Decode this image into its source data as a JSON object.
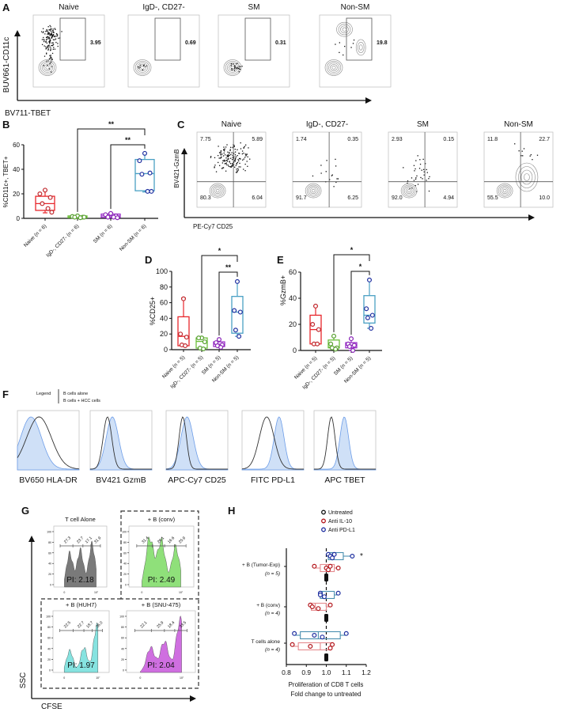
{
  "panel_labels": {
    "A": "A",
    "B": "B",
    "C": "C",
    "D": "D",
    "E": "E",
    "F": "F",
    "G": "G",
    "H": "H"
  },
  "A": {
    "titles": [
      "Naive",
      "IgD-, CD27-",
      "SM",
      "Non-SM"
    ],
    "gate_values": [
      "3.95",
      "0.69",
      "0.31",
      "19.8"
    ],
    "ylabel": "BUV661-CD11c",
    "xlabel": "BV711-TBET"
  },
  "C": {
    "titles": [
      "Naive",
      "IgD-, CD27-",
      "SM",
      "Non-SM"
    ],
    "quadrants": [
      [
        "7.75",
        "5.89",
        "80.3",
        "6.04"
      ],
      [
        "1.74",
        "0.35",
        "91.7",
        "6.25"
      ],
      [
        "2.93",
        "0.15",
        "92.0",
        "4.94"
      ],
      [
        "11.8",
        "22.7",
        "55.5",
        "10.0"
      ]
    ],
    "ylabel": "BV421-GzmB",
    "xlabel": "PE-Cy7 CD25"
  },
  "F": {
    "legend_title": "Legend",
    "legend_items": [
      "B cells alone",
      "B cells + HCC cells"
    ],
    "markers": [
      "BV650 HLA-DR",
      "BV421 GzmB",
      "APC-Cy7 CD25",
      "FITC PD-L1",
      "APC TBET"
    ],
    "colors": {
      "alone": "#333333",
      "hcc": "#6d9de8"
    }
  },
  "G": {
    "panels": [
      {
        "title": "T cell Alone",
        "gates": [
          "27.3",
          "23.7",
          "17.1",
          "31.9"
        ],
        "pi": "PI: 2.18",
        "color": "#7a7a7a"
      },
      {
        "title": "+ B (conv)",
        "gates": [
          "31.4",
          "26.1",
          "16.6",
          "25.9"
        ],
        "pi": "PI: 2.49",
        "color": "#8fe07a"
      },
      {
        "title": "+ B (HUH7)",
        "gates": [
          "22.5",
          "22.7",
          "18.7",
          "36.0"
        ],
        "pi": "PI: 1.97",
        "color": "#86e3e0"
      },
      {
        "title": "+ B (SNU-475)",
        "gates": [
          "22.1",
          "25.9",
          "18.4",
          "33.5"
        ],
        "pi": "PI: 2.04",
        "color": "#cf6fe0"
      }
    ],
    "yticks": [
      "0",
      "20",
      "40",
      "60",
      "80",
      "100"
    ],
    "xticks": [
      "0",
      "10⁷"
    ],
    "ylabel": "SSC",
    "xlabel": "CFSE"
  },
  "chart_data": [
    {
      "panel": "B",
      "type": "box",
      "orientation": "vertical",
      "ylabel": "%CD11c+, TBET+",
      "ylim": [
        0,
        60
      ],
      "yticks": [
        "0",
        "20",
        "40",
        "60"
      ],
      "categories": [
        "Naive (n = 6)",
        "IgD-, CD27- (n = 6)",
        "SM (n = 6)",
        "Non-SM (n = 6)"
      ],
      "series": [
        {
          "name": "Naive",
          "color": "#e8262b",
          "point_color": "#c0282d",
          "points": [
            23,
            20,
            17,
            12,
            8,
            5
          ],
          "box": {
            "min": 4.5,
            "q1": 6.5,
            "median": 12,
            "q3": 18,
            "max": 23
          }
        },
        {
          "name": "IgD-, CD27-",
          "color": "#6cbf3b",
          "point_color": "#58a030",
          "points": [
            2,
            1.5,
            1,
            1,
            0.5,
            1
          ],
          "box": {
            "min": 0,
            "q1": 0.5,
            "median": 1,
            "q3": 2,
            "max": 2
          }
        },
        {
          "name": "SM",
          "color": "#9b2fc9",
          "point_color": "#8a25b8",
          "points": [
            4,
            3,
            2,
            1,
            1,
            0.5
          ],
          "box": {
            "min": 0.5,
            "q1": 0.7,
            "median": 2,
            "q3": 3.5,
            "max": 4.5
          }
        },
        {
          "name": "Non-SM",
          "color": "#4aa0c4",
          "point_color": "#1f2fa0",
          "points": [
            53,
            47,
            37,
            36,
            22,
            22
          ],
          "box": {
            "min": 21.5,
            "q1": 22.5,
            "median": 36.5,
            "q3": 48,
            "max": 53
          }
        }
      ],
      "significance": [
        {
          "from": 1,
          "to": 3,
          "label": "**"
        },
        {
          "from": 2,
          "to": 3,
          "label": "**"
        }
      ]
    },
    {
      "panel": "D",
      "type": "box",
      "orientation": "vertical",
      "ylabel": "%CD25+",
      "ylim": [
        0,
        100
      ],
      "yticks": [
        "0",
        "20",
        "40",
        "60",
        "80",
        "100"
      ],
      "categories": [
        "Naive (n = 5)",
        "IgD-, CD27- (n = 5)",
        "SM (n = 5)",
        "Non-SM (n = 5)"
      ],
      "series": [
        {
          "name": "Naive",
          "color": "#e8262b",
          "point_color": "#c0282d",
          "points": [
            65,
            20,
            16,
            6,
            5
          ],
          "box": {
            "min": 4,
            "q1": 5,
            "median": 17,
            "q3": 42,
            "max": 66
          }
        },
        {
          "name": "IgD-, CD27-",
          "color": "#6cbf3b",
          "point_color": "#58a030",
          "points": [
            15,
            15,
            10,
            2,
            1
          ],
          "box": {
            "min": 1,
            "q1": 2,
            "median": 10.5,
            "q3": 15,
            "max": 16
          }
        },
        {
          "name": "SM",
          "color": "#9b2fc9",
          "point_color": "#8a25b8",
          "points": [
            13,
            9,
            6,
            5,
            3
          ],
          "box": {
            "min": 3,
            "q1": 4,
            "median": 7,
            "q3": 10,
            "max": 13
          }
        },
        {
          "name": "Non-SM",
          "color": "#4aa0c4",
          "point_color": "#1f2fa0",
          "points": [
            87,
            50,
            48,
            25,
            17
          ],
          "box": {
            "min": 17,
            "q1": 21,
            "median": 48,
            "q3": 68,
            "max": 87
          }
        }
      ],
      "significance": [
        {
          "from": 1,
          "to": 3,
          "label": "*"
        },
        {
          "from": 2,
          "to": 3,
          "label": "**"
        }
      ]
    },
    {
      "panel": "E",
      "type": "box",
      "orientation": "vertical",
      "ylabel": "%GzmB+",
      "ylim": [
        0,
        60
      ],
      "yticks": [
        "0",
        "20",
        "40",
        "60"
      ],
      "categories": [
        "Naive (n = 5)",
        "IgD-, CD27- (n = 5)",
        "SM (n = 5)",
        "Non-SM (n = 5)"
      ],
      "series": [
        {
          "name": "Naive",
          "color": "#e8262b",
          "point_color": "#c0282d",
          "points": [
            34,
            20,
            16,
            5,
            5
          ],
          "box": {
            "min": 4.5,
            "q1": 5,
            "median": 16,
            "q3": 27,
            "max": 34
          }
        },
        {
          "name": "IgD-, CD27-",
          "color": "#6cbf3b",
          "point_color": "#58a030",
          "points": [
            11,
            5,
            2,
            2,
            1
          ],
          "box": {
            "min": 1,
            "q1": 2,
            "median": 2.5,
            "q3": 8,
            "max": 11
          }
        },
        {
          "name": "SM",
          "color": "#9b2fc9",
          "point_color": "#8a25b8",
          "points": [
            9,
            5,
            4,
            3,
            0
          ],
          "box": {
            "min": 0,
            "q1": 2,
            "median": 4,
            "q3": 6,
            "max": 9
          }
        },
        {
          "name": "Non-SM",
          "color": "#4aa0c4",
          "point_color": "#1f2fa0",
          "points": [
            54,
            32,
            27,
            25,
            17
          ],
          "box": {
            "min": 17,
            "q1": 21,
            "median": 27,
            "q3": 42,
            "max": 54
          }
        }
      ],
      "significance": [
        {
          "from": 1,
          "to": 3,
          "label": "*"
        },
        {
          "from": 2,
          "to": 3,
          "label": "*"
        }
      ]
    },
    {
      "panel": "H",
      "type": "box",
      "orientation": "horizontal",
      "xlabel": [
        "Proliferation of CD8 T cells",
        "Fold change to untreated"
      ],
      "xlim": [
        0.8,
        1.2
      ],
      "xticks": [
        "0.8",
        "0.9",
        "1.0",
        "1.1",
        "1.2"
      ],
      "reference_line": 1.0,
      "legend": [
        {
          "name": "Untreated",
          "color": "#111111"
        },
        {
          "name": "Anti IL-10",
          "color": "#b3161c"
        },
        {
          "name": "Anti PD-L1",
          "color": "#1f2fa0"
        }
      ],
      "groups": [
        {
          "label": "+ B (Tumor-Exp)",
          "n": "(n = 5)",
          "annotation": "*",
          "series": [
            {
              "name": "Untreated",
              "points": [
                1,
                1,
                1,
                1,
                1
              ],
              "box": {
                "min": 1,
                "q1": 1,
                "median": 1,
                "q3": 1,
                "max": 1
              }
            },
            {
              "name": "Anti IL-10",
              "box_color": "#e58a8e",
              "points": [
                0.94,
                1.0,
                1.01,
                1.02,
                1.06
              ],
              "box": {
                "min": 0.94,
                "q1": 0.97,
                "median": 1.0,
                "q3": 1.04,
                "max": 1.06
              }
            },
            {
              "name": "Anti PD-L1",
              "box_color": "#4a8fb0",
              "points": [
                1.01,
                1.02,
                1.03,
                1.04,
                1.13
              ],
              "box": {
                "min": 1.01,
                "q1": 1.01,
                "median": 1.03,
                "q3": 1.085,
                "max": 1.13
              }
            }
          ]
        },
        {
          "label": "+ B (conv)",
          "n": "(n = 4)",
          "annotation": "",
          "series": [
            {
              "name": "Untreated",
              "points": [
                1,
                1,
                1,
                1
              ],
              "box": {
                "min": 1,
                "q1": 1,
                "median": 1,
                "q3": 1,
                "max": 1
              }
            },
            {
              "name": "Anti IL-10",
              "box_color": "#e58a8e",
              "points": [
                0.92,
                0.93,
                0.96,
                1.02
              ],
              "box": {
                "min": 0.92,
                "q1": 0.925,
                "median": 0.945,
                "q3": 1.0,
                "max": 1.02
              }
            },
            {
              "name": "Anti PD-L1",
              "box_color": "#4a8fb0",
              "points": [
                0.97,
                0.97,
                0.99,
                1.06
              ],
              "box": {
                "min": 0.97,
                "q1": 0.97,
                "median": 0.98,
                "q3": 1.04,
                "max": 1.06
              }
            }
          ]
        },
        {
          "label": "T cells alone",
          "n": "(n = 4)",
          "annotation": "",
          "series": [
            {
              "name": "Untreated",
              "points": [
                1,
                1,
                1,
                1
              ],
              "box": {
                "min": 1,
                "q1": 1,
                "median": 1,
                "q3": 1,
                "max": 1
              }
            },
            {
              "name": "Anti IL-10",
              "box_color": "#e58a8e",
              "points": [
                0.83,
                0.92,
                1.02,
                1.03
              ],
              "box": {
                "min": 0.83,
                "q1": 0.86,
                "median": 0.97,
                "q3": 1.025,
                "max": 1.03
              }
            },
            {
              "name": "Anti PD-L1",
              "box_color": "#4a8fb0",
              "points": [
                0.84,
                0.94,
                0.98,
                1.1
              ],
              "box": {
                "min": 0.84,
                "q1": 0.87,
                "median": 0.96,
                "q3": 1.07,
                "max": 1.1
              }
            }
          ]
        }
      ]
    }
  ]
}
